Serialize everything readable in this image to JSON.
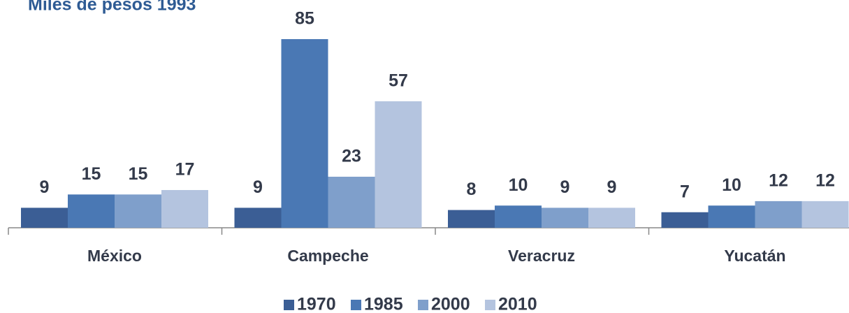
{
  "chart_data": {
    "type": "bar",
    "title": "Miles de pesos 1993",
    "categories": [
      "México",
      "Campeche",
      "Veracruz",
      "Yucatán"
    ],
    "series": [
      {
        "name": "1970",
        "color": "#3b5e95",
        "values": [
          9,
          9,
          8,
          7
        ]
      },
      {
        "name": "1985",
        "color": "#4a78b4",
        "values": [
          15,
          85,
          10,
          10
        ]
      },
      {
        "name": "2000",
        "color": "#7f9fcb",
        "values": [
          15,
          23,
          9,
          12
        ]
      },
      {
        "name": "2010",
        "color": "#b4c4df",
        "values": [
          17,
          57,
          9,
          12
        ]
      }
    ]
  }
}
